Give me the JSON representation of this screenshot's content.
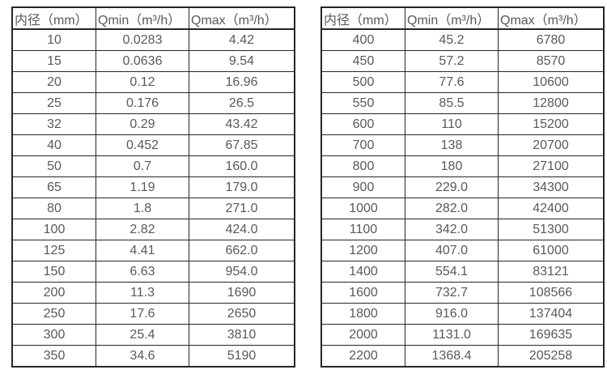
{
  "colors": {
    "border": "#262626",
    "text": "#595959",
    "background": "#ffffff"
  },
  "tables": [
    {
      "id": "small-diameters",
      "headers": [
        "内径（mm）",
        "Qmin（m³/h）",
        "Qmax（m³/h）"
      ],
      "rows": [
        [
          "10",
          "0.0283",
          "4.42"
        ],
        [
          "15",
          "0.0636",
          "9.54"
        ],
        [
          "20",
          "0.12",
          "16.96"
        ],
        [
          "25",
          "0.176",
          "26.5"
        ],
        [
          "32",
          "0.29",
          "43.42"
        ],
        [
          "40",
          "0.452",
          "67.85"
        ],
        [
          "50",
          "0.7",
          "160.0"
        ],
        [
          "65",
          "1.19",
          "179.0"
        ],
        [
          "80",
          "1.8",
          "271.0"
        ],
        [
          "100",
          "2.82",
          "424.0"
        ],
        [
          "125",
          "4.41",
          "662.0"
        ],
        [
          "150",
          "6.63",
          "954.0"
        ],
        [
          "200",
          "11.3",
          "1690"
        ],
        [
          "250",
          "17.6",
          "2650"
        ],
        [
          "300",
          "25.4",
          "3810"
        ],
        [
          "350",
          "34.6",
          "5190"
        ]
      ]
    },
    {
      "id": "large-diameters",
      "headers": [
        "内径（mm）",
        "Qmin（m³/h）",
        "Qmax（m³/h）"
      ],
      "rows": [
        [
          "400",
          "45.2",
          "6780"
        ],
        [
          "450",
          "57.2",
          "8570"
        ],
        [
          "500",
          "77.6",
          "10600"
        ],
        [
          "550",
          "85.5",
          "12800"
        ],
        [
          "600",
          "110",
          "15200"
        ],
        [
          "700",
          "138",
          "20700"
        ],
        [
          "800",
          "180",
          "27100"
        ],
        [
          "900",
          "229.0",
          "34300"
        ],
        [
          "1000",
          "282.0",
          "42400"
        ],
        [
          "1100",
          "342.0",
          "51300"
        ],
        [
          "1200",
          "407.0",
          "61000"
        ],
        [
          "1400",
          "554.1",
          "83121"
        ],
        [
          "1600",
          "732.7",
          "108566"
        ],
        [
          "1800",
          "916.0",
          "137404"
        ],
        [
          "2000",
          "1131.0",
          "169635"
        ],
        [
          "2200",
          "1368.4",
          "205258"
        ]
      ]
    }
  ]
}
